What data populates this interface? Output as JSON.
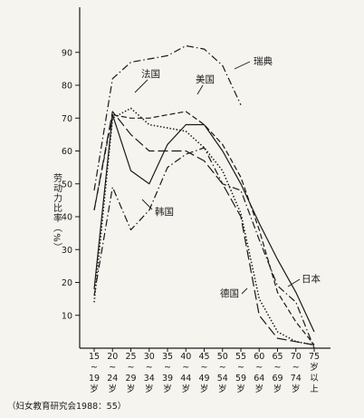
{
  "chart_data": {
    "type": "line",
    "title": "",
    "xlabel": "",
    "ylabel": "劳动力比率（%）",
    "ylim": [
      0,
      95
    ],
    "yticks": [
      10,
      20,
      30,
      40,
      50,
      60,
      70,
      80,
      90
    ],
    "grid": false,
    "categories": [
      [
        "15",
        "~",
        "19",
        "岁"
      ],
      [
        "20",
        "~",
        "24",
        "岁"
      ],
      [
        "25",
        "~",
        "29",
        "岁"
      ],
      [
        "30",
        "~",
        "34",
        "岁"
      ],
      [
        "35",
        "~",
        "39",
        "岁"
      ],
      [
        "40",
        "~",
        "44",
        "岁"
      ],
      [
        "45",
        "~",
        "49",
        "岁"
      ],
      [
        "50",
        "~",
        "54",
        "岁"
      ],
      [
        "55",
        "~",
        "59",
        "岁"
      ],
      [
        "60",
        "~",
        "64",
        "岁"
      ],
      [
        "65",
        "~",
        "69",
        "岁"
      ],
      [
        "70",
        "~",
        "74",
        "岁"
      ],
      [
        "75",
        "岁",
        "以",
        "上"
      ]
    ],
    "series": [
      {
        "name": "瑞典",
        "style": "dashdot",
        "values": [
          48,
          82,
          87,
          88,
          89,
          92,
          91,
          86,
          74,
          null,
          null,
          null,
          null
        ]
      },
      {
        "name": "法国",
        "style": "dotted",
        "values": [
          14,
          70,
          73,
          68,
          67,
          66,
          61,
          54,
          41,
          15,
          5,
          2,
          1
        ]
      },
      {
        "name": "美国",
        "style": "dashed",
        "values": [
          42,
          71,
          70,
          70,
          71,
          72,
          68,
          62,
          52,
          36,
          17,
          8,
          1
        ]
      },
      {
        "name": "日本",
        "style": "solid",
        "values": [
          18,
          71,
          54,
          50,
          62,
          68,
          68,
          60,
          50,
          38,
          27,
          17,
          5
        ]
      },
      {
        "name": "德国",
        "style": "longdash",
        "values": [
          42,
          72,
          65,
          60,
          60,
          60,
          57,
          50,
          40,
          10,
          3,
          2,
          1
        ]
      },
      {
        "name": "韩国",
        "style": "dashdot",
        "values": [
          16,
          49,
          36,
          42,
          55,
          59,
          61,
          50,
          48,
          33,
          19,
          14,
          0
        ]
      }
    ]
  },
  "source_text": "（妇女教育研究会1988：55）"
}
